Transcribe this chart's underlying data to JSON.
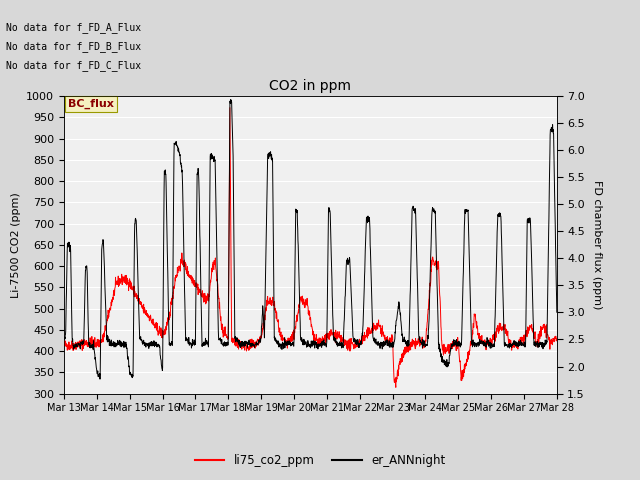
{
  "title": "CO2 in ppm",
  "ylabel_left": "Li-7500 CO2 (ppm)",
  "ylabel_right": "FD chamber flux (ppm)",
  "ylim_left": [
    300,
    1000
  ],
  "ylim_right": [
    1.5,
    7.0
  ],
  "yticks_left": [
    300,
    350,
    400,
    450,
    500,
    550,
    600,
    650,
    700,
    750,
    800,
    850,
    900,
    950,
    1000
  ],
  "yticks_right": [
    1.5,
    2.0,
    2.5,
    3.0,
    3.5,
    4.0,
    4.5,
    5.0,
    5.5,
    6.0,
    6.5,
    7.0
  ],
  "xtick_labels": [
    "Mar 13",
    "Mar 14",
    "Mar 15",
    "Mar 16",
    "Mar 17",
    "Mar 18",
    "Mar 19",
    "Mar 20",
    "Mar 21",
    "Mar 22",
    "Mar 23",
    "Mar 24",
    "Mar 25",
    "Mar 26",
    "Mar 27",
    "Mar 28"
  ],
  "legend_labels": [
    "li75_co2_ppm",
    "er_ANNnight"
  ],
  "legend_colors": [
    "#ff0000",
    "#000000"
  ],
  "no_data_texts": [
    "No data for f_FD_A_Flux",
    "No data for f_FD_B_Flux",
    "No data for f_FD_C_Flux"
  ],
  "bc_flux_label": "BC_flux",
  "fig_bg_color": "#d8d8d8",
  "plot_bg_color": "#f0f0f0",
  "grid_color": "#ffffff",
  "color_red": "#ff0000",
  "color_black": "#000000",
  "figsize": [
    6.4,
    4.8
  ],
  "dpi": 100
}
